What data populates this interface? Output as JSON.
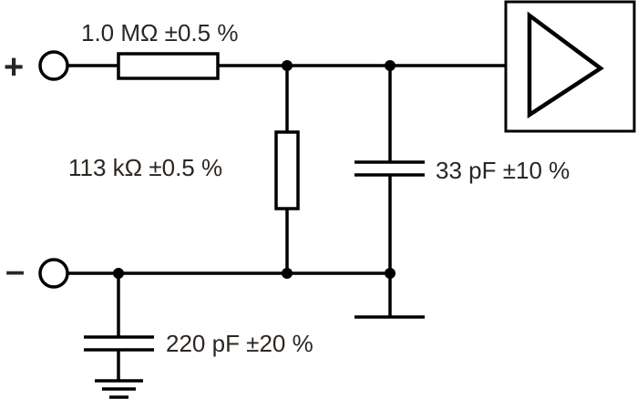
{
  "diagram": {
    "terminals": {
      "positive": "+",
      "negative": "–"
    },
    "components": {
      "series_resistor": "1.0 MΩ ±0.5 %",
      "shunt_resistor": "113 kΩ ±0.5 %",
      "shunt_capacitor": "33 pF ±10 %",
      "ground_capacitor": "220 pF ±20 %"
    },
    "blocks": {
      "amplifier": "amplifier-triangle-icon"
    },
    "colors": {
      "lines": "#000000",
      "text": "#2b2622"
    }
  }
}
